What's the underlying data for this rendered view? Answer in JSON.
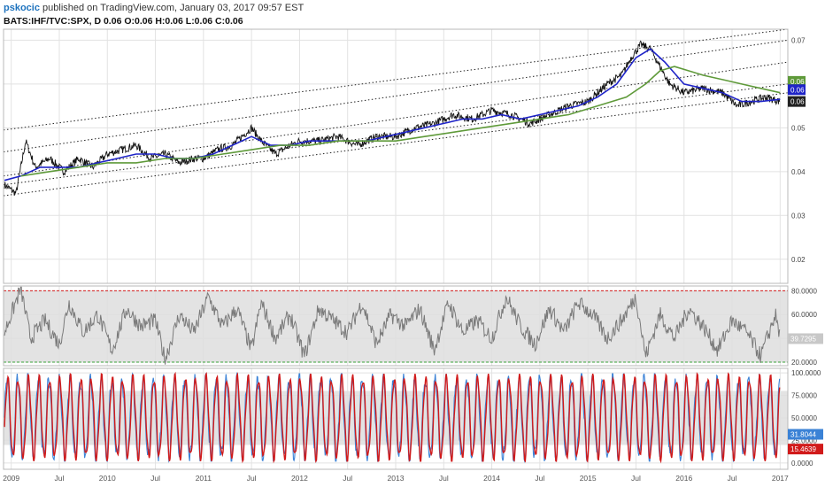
{
  "header": {
    "author": "pskocic",
    "published_text": "published on TradingView.com, January 03, 2017 09:57 EST",
    "symbol_line": "BATS:IHF/TVC:SPX, D  0.06 O:0.06 H:0.06 L:0.06 C:0.06"
  },
  "colors": {
    "price": "#111111",
    "ma_fast": "#1f24c8",
    "ma_slow": "#5f9a3a",
    "channel": "#222222",
    "rsi": "#7a7a7a",
    "stoch_k": "#3b82d6",
    "stoch_d": "#d11a1a",
    "band_fill": "#dedede",
    "upper_level": "#d11a1a",
    "lower_level": "#3aa03a"
  },
  "x_axis": {
    "labels": [
      "2009",
      "Jul",
      "2010",
      "Jul",
      "2011",
      "Jul",
      "2012",
      "Jul",
      "2013",
      "Jul",
      "2014",
      "Jul",
      "2015",
      "Jul",
      "2016",
      "Jul",
      "2017"
    ],
    "positions": [
      2009.0,
      2009.5,
      2010.0,
      2010.5,
      2011.0,
      2011.5,
      2012.0,
      2012.5,
      2013.0,
      2013.5,
      2014.0,
      2014.5,
      2015.0,
      2015.5,
      2016.0,
      2016.5,
      2017.0
    ],
    "range": [
      2008.92,
      2017.08
    ]
  },
  "chart_data": [
    {
      "type": "line",
      "panel": "price",
      "y_ticks": [
        "0.07",
        "0.06",
        "0.05",
        "0.04",
        "0.03",
        "0.02"
      ],
      "y_tick_values": [
        0.07,
        0.06,
        0.05,
        0.04,
        0.03,
        0.02
      ],
      "ylim": [
        0.0145,
        0.0725
      ],
      "series": [
        {
          "key": "price",
          "x": [
            2008.93,
            2009.05,
            2009.15,
            2009.25,
            2009.4,
            2009.55,
            2009.7,
            2009.85,
            2010.0,
            2010.15,
            2010.3,
            2010.45,
            2010.6,
            2010.75,
            2010.9,
            2011.0,
            2011.15,
            2011.3,
            2011.45,
            2011.5,
            2011.6,
            2011.75,
            2011.9,
            2012.0,
            2012.2,
            2012.4,
            2012.6,
            2012.8,
            2013.0,
            2013.2,
            2013.4,
            2013.6,
            2013.8,
            2014.0,
            2014.2,
            2014.4,
            2014.6,
            2014.8,
            2015.0,
            2015.1,
            2015.2,
            2015.35,
            2015.45,
            2015.55,
            2015.65,
            2015.75,
            2015.85,
            2016.0,
            2016.2,
            2016.4,
            2016.55,
            2016.7,
            2016.85,
            2017.0
          ],
          "y": [
            0.037,
            0.035,
            0.047,
            0.041,
            0.043,
            0.04,
            0.043,
            0.041,
            0.044,
            0.045,
            0.046,
            0.043,
            0.044,
            0.042,
            0.043,
            0.043,
            0.045,
            0.046,
            0.049,
            0.05,
            0.047,
            0.044,
            0.046,
            0.047,
            0.047,
            0.048,
            0.046,
            0.048,
            0.048,
            0.05,
            0.051,
            0.053,
            0.052,
            0.054,
            0.053,
            0.051,
            0.053,
            0.055,
            0.056,
            0.058,
            0.06,
            0.062,
            0.066,
            0.069,
            0.068,
            0.064,
            0.06,
            0.058,
            0.059,
            0.058,
            0.055,
            0.056,
            0.057,
            0.056
          ]
        },
        {
          "key": "ma_fast",
          "x": [
            2008.93,
            2009.1,
            2009.3,
            2009.5,
            2009.7,
            2009.9,
            2010.1,
            2010.3,
            2010.5,
            2010.7,
            2010.9,
            2011.1,
            2011.3,
            2011.5,
            2011.7,
            2011.9,
            2012.1,
            2012.3,
            2012.5,
            2012.7,
            2012.9,
            2013.1,
            2013.3,
            2013.5,
            2013.7,
            2013.9,
            2014.1,
            2014.3,
            2014.5,
            2014.7,
            2014.9,
            2015.1,
            2015.3,
            2015.5,
            2015.65,
            2015.8,
            2016.0,
            2016.2,
            2016.4,
            2016.6,
            2016.8,
            2017.0
          ],
          "y": [
            0.038,
            0.039,
            0.041,
            0.041,
            0.041,
            0.042,
            0.043,
            0.044,
            0.044,
            0.043,
            0.043,
            0.044,
            0.046,
            0.048,
            0.046,
            0.046,
            0.047,
            0.047,
            0.047,
            0.047,
            0.048,
            0.049,
            0.05,
            0.051,
            0.052,
            0.052,
            0.053,
            0.052,
            0.053,
            0.054,
            0.055,
            0.057,
            0.06,
            0.066,
            0.068,
            0.065,
            0.06,
            0.059,
            0.058,
            0.056,
            0.056,
            0.0565
          ]
        },
        {
          "key": "ma_slow",
          "x": [
            2009.1,
            2009.4,
            2009.7,
            2010.0,
            2010.3,
            2010.6,
            2010.9,
            2011.2,
            2011.5,
            2011.8,
            2012.1,
            2012.4,
            2012.7,
            2013.0,
            2013.3,
            2013.6,
            2013.9,
            2014.2,
            2014.5,
            2014.8,
            2015.1,
            2015.4,
            2015.6,
            2015.75,
            2015.9,
            2016.05,
            2016.2,
            2016.4,
            2016.6,
            2016.8,
            2017.0
          ],
          "y": [
            0.039,
            0.04,
            0.041,
            0.042,
            0.042,
            0.043,
            0.043,
            0.044,
            0.045,
            0.046,
            0.046,
            0.047,
            0.047,
            0.047,
            0.048,
            0.049,
            0.05,
            0.051,
            0.052,
            0.053,
            0.055,
            0.057,
            0.06,
            0.063,
            0.064,
            0.063,
            0.062,
            0.061,
            0.06,
            0.059,
            0.058
          ]
        }
      ],
      "channel_lines": [
        {
          "x": [
            2008.92,
            2017.08
          ],
          "y": [
            0.0495,
            0.0725
          ]
        },
        {
          "x": [
            2008.92,
            2017.08
          ],
          "y": [
            0.0445,
            0.07
          ]
        },
        {
          "x": [
            2008.92,
            2017.08
          ],
          "y": [
            0.039,
            0.065
          ]
        },
        {
          "x": [
            2008.92,
            2017.08
          ],
          "y": [
            0.037,
            0.06
          ]
        },
        {
          "x": [
            2008.92,
            2017.08
          ],
          "y": [
            0.0345,
            0.058
          ]
        }
      ],
      "badges": [
        {
          "label": "0.06",
          "value": 0.0606,
          "color": "#5f9a3a"
        },
        {
          "label": "0.06",
          "value": 0.0587,
          "color": "#1f24c8"
        },
        {
          "label": "0.06",
          "value": 0.056,
          "color": "#222222"
        }
      ]
    },
    {
      "type": "line",
      "panel": "rsi",
      "y_ticks": [
        "80.0000",
        "60.0000",
        "40.0000",
        "20.0000"
      ],
      "y_tick_values": [
        80,
        60,
        40,
        20
      ],
      "ylim": [
        17,
        84
      ],
      "band": [
        20,
        80
      ],
      "levels": [
        {
          "value": 80,
          "key": "upper_level"
        },
        {
          "value": 20,
          "key": "lower_level"
        }
      ],
      "badge": {
        "label": "39.7295",
        "value": 39.7295,
        "color": "#c8c8c8"
      },
      "series": [
        {
          "key": "rsi",
          "x": [
            2008.93,
            2009.1,
            2009.2,
            2009.35,
            2009.5,
            2009.6,
            2009.75,
            2009.9,
            2010.05,
            2010.2,
            2010.35,
            2010.5,
            2010.6,
            2010.75,
            2010.9,
            2011.05,
            2011.2,
            2011.35,
            2011.5,
            2011.6,
            2011.75,
            2011.9,
            2012.05,
            2012.2,
            2012.35,
            2012.5,
            2012.65,
            2012.8,
            2012.95,
            2013.1,
            2013.25,
            2013.4,
            2013.55,
            2013.7,
            2013.85,
            2014.0,
            2014.15,
            2014.3,
            2014.45,
            2014.6,
            2014.75,
            2014.9,
            2015.05,
            2015.2,
            2015.35,
            2015.5,
            2015.6,
            2015.75,
            2015.9,
            2016.05,
            2016.2,
            2016.35,
            2016.5,
            2016.65,
            2016.8,
            2016.95,
            2017.0
          ],
          "y": [
            45,
            82,
            40,
            55,
            35,
            70,
            45,
            60,
            30,
            65,
            50,
            55,
            22,
            60,
            45,
            75,
            50,
            65,
            30,
            70,
            40,
            60,
            25,
            65,
            55,
            45,
            70,
            35,
            60,
            50,
            65,
            30,
            70,
            45,
            55,
            40,
            75,
            50,
            35,
            65,
            45,
            70,
            60,
            40,
            55,
            75,
            25,
            60,
            40,
            65,
            50,
            30,
            55,
            45,
            25,
            60,
            40
          ]
        }
      ]
    },
    {
      "type": "line",
      "panel": "stochastic",
      "y_ticks": [
        "100.0000",
        "75.0000",
        "50.0000",
        "25.0000",
        "0.0000"
      ],
      "y_tick_values": [
        100,
        75,
        50,
        25,
        0
      ],
      "ylim": [
        -7,
        105
      ],
      "band": [
        20,
        80
      ],
      "badges": [
        {
          "label": "31.8044",
          "value": 31.8044,
          "color": "#3b82d6"
        },
        {
          "label": "15.4639",
          "value": 15.4639,
          "color": "#d11a1a"
        }
      ],
      "series": [
        {
          "key": "stoch_k",
          "x": [],
          "y": []
        },
        {
          "key": "stoch_d",
          "x": [],
          "y": []
        }
      ]
    }
  ]
}
